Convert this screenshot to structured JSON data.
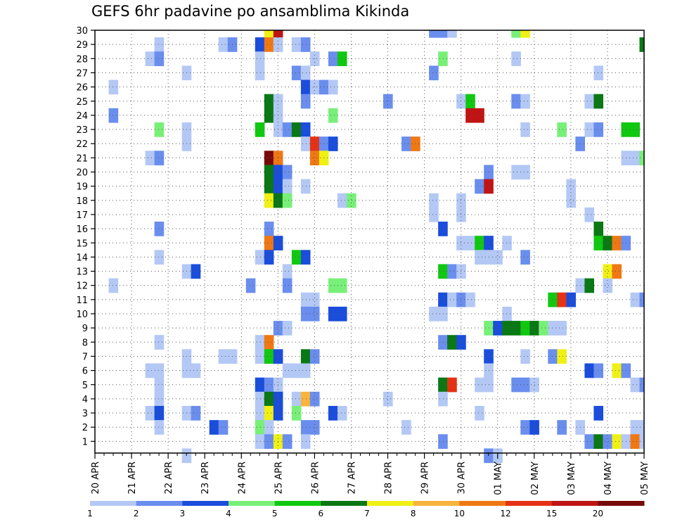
{
  "chart_data": {
    "type": "heatmap",
    "title": "GEFS 6hr padavine po ansamblima Kikinda",
    "xlabel": "",
    "ylabel": "",
    "grid": true,
    "x_range": [
      0,
      60
    ],
    "y_range": [
      0,
      30
    ],
    "x_ticks": [
      {
        "x": 0,
        "label": "20 APR"
      },
      {
        "x": 4,
        "label": "21 APR"
      },
      {
        "x": 8,
        "label": "22 APR"
      },
      {
        "x": 12,
        "label": "23 APR"
      },
      {
        "x": 16,
        "label": "24 APR"
      },
      {
        "x": 20,
        "label": "25 APR"
      },
      {
        "x": 24,
        "label": "26 APR"
      },
      {
        "x": 28,
        "label": "27 APR"
      },
      {
        "x": 32,
        "label": "28 APR"
      },
      {
        "x": 36,
        "label": "29 APR"
      },
      {
        "x": 40,
        "label": "30 APR"
      },
      {
        "x": 44,
        "label": "01 MAY"
      },
      {
        "x": 48,
        "label": "02 MAY"
      },
      {
        "x": 52,
        "label": "03 MAY"
      },
      {
        "x": 56,
        "label": "04 MAY"
      },
      {
        "x": 60,
        "label": "05 MAY"
      }
    ],
    "y_ticks": [
      1,
      2,
      3,
      4,
      5,
      6,
      7,
      8,
      9,
      10,
      11,
      12,
      13,
      14,
      15,
      16,
      17,
      18,
      19,
      20,
      21,
      22,
      23,
      24,
      25,
      26,
      27,
      28,
      29,
      30
    ],
    "legend": {
      "placement": "bottom",
      "labels": [
        "1",
        "2",
        "3",
        "4",
        "5",
        "6",
        "7",
        "8",
        "10",
        "12",
        "15",
        "20"
      ],
      "colors": [
        "#b4c8f5",
        "#6a8eee",
        "#1a4ddb",
        "#78f078",
        "#10c810",
        "#0a7814",
        "#f0f014",
        "#f8b43c",
        "#f07814",
        "#e63214",
        "#c01414",
        "#780a0a"
      ]
    },
    "cells_note": "each cell: [t (6-hr step from 20 APR 00z), member, color index into legend.colors]",
    "cells": [
      [
        19,
        30,
        6
      ],
      [
        20,
        30,
        10
      ],
      [
        37,
        30,
        1
      ],
      [
        38,
        30,
        1
      ],
      [
        39,
        30,
        0
      ],
      [
        46,
        30,
        3
      ],
      [
        47,
        30,
        6
      ],
      [
        7,
        29,
        0
      ],
      [
        14,
        29,
        0
      ],
      [
        15,
        29,
        1
      ],
      [
        18,
        29,
        2
      ],
      [
        19,
        29,
        8
      ],
      [
        20,
        29,
        0
      ],
      [
        22,
        29,
        0
      ],
      [
        23,
        29,
        1
      ],
      [
        60,
        29,
        5
      ],
      [
        6,
        28,
        0
      ],
      [
        7,
        28,
        1
      ],
      [
        18,
        28,
        0
      ],
      [
        24,
        28,
        0
      ],
      [
        26,
        28,
        1
      ],
      [
        27,
        28,
        4
      ],
      [
        38,
        28,
        3
      ],
      [
        46,
        28,
        0
      ],
      [
        10,
        27,
        0
      ],
      [
        18,
        27,
        0
      ],
      [
        22,
        27,
        1
      ],
      [
        23,
        27,
        0
      ],
      [
        37,
        27,
        1
      ],
      [
        55,
        27,
        0
      ],
      [
        2,
        26,
        0
      ],
      [
        23,
        26,
        2
      ],
      [
        24,
        26,
        0
      ],
      [
        25,
        26,
        1
      ],
      [
        26,
        26,
        0
      ],
      [
        19,
        25,
        5
      ],
      [
        20,
        25,
        0
      ],
      [
        23,
        25,
        1
      ],
      [
        32,
        25,
        1
      ],
      [
        40,
        25,
        0
      ],
      [
        41,
        25,
        4
      ],
      [
        46,
        25,
        1
      ],
      [
        47,
        25,
        0
      ],
      [
        54,
        25,
        0
      ],
      [
        55,
        25,
        5
      ],
      [
        2,
        24,
        1
      ],
      [
        19,
        24,
        5
      ],
      [
        20,
        24,
        0
      ],
      [
        26,
        24,
        3
      ],
      [
        41,
        24,
        10
      ],
      [
        42,
        24,
        10
      ],
      [
        7,
        23,
        3
      ],
      [
        10,
        23,
        0
      ],
      [
        18,
        23,
        4
      ],
      [
        20,
        23,
        0
      ],
      [
        21,
        23,
        1
      ],
      [
        22,
        23,
        5
      ],
      [
        23,
        23,
        2
      ],
      [
        47,
        23,
        0
      ],
      [
        51,
        23,
        3
      ],
      [
        54,
        23,
        0
      ],
      [
        55,
        23,
        1
      ],
      [
        58,
        23,
        4
      ],
      [
        59,
        23,
        4
      ],
      [
        10,
        22,
        0
      ],
      [
        23,
        22,
        0
      ],
      [
        24,
        22,
        9
      ],
      [
        25,
        22,
        1
      ],
      [
        26,
        22,
        2
      ],
      [
        34,
        22,
        1
      ],
      [
        35,
        22,
        8
      ],
      [
        53,
        22,
        1
      ],
      [
        6,
        21,
        0
      ],
      [
        7,
        21,
        1
      ],
      [
        19,
        21,
        11
      ],
      [
        20,
        21,
        8
      ],
      [
        24,
        21,
        8
      ],
      [
        25,
        21,
        6
      ],
      [
        58,
        21,
        0
      ],
      [
        59,
        21,
        0
      ],
      [
        60,
        21,
        3
      ],
      [
        19,
        20,
        5
      ],
      [
        20,
        20,
        2
      ],
      [
        21,
        20,
        1
      ],
      [
        43,
        20,
        1
      ],
      [
        46,
        20,
        0
      ],
      [
        47,
        20,
        0
      ],
      [
        19,
        19,
        5
      ],
      [
        20,
        19,
        2
      ],
      [
        21,
        19,
        0
      ],
      [
        23,
        19,
        0
      ],
      [
        42,
        19,
        1
      ],
      [
        43,
        19,
        10
      ],
      [
        52,
        19,
        0
      ],
      [
        19,
        18,
        6
      ],
      [
        20,
        18,
        5
      ],
      [
        21,
        18,
        3
      ],
      [
        27,
        18,
        0
      ],
      [
        28,
        18,
        3
      ],
      [
        37,
        18,
        0
      ],
      [
        40,
        18,
        0
      ],
      [
        52,
        18,
        0
      ],
      [
        37,
        17,
        0
      ],
      [
        40,
        17,
        0
      ],
      [
        54,
        17,
        0
      ],
      [
        7,
        16,
        1
      ],
      [
        19,
        16,
        1
      ],
      [
        38,
        16,
        2
      ],
      [
        55,
        16,
        5
      ],
      [
        19,
        15,
        8
      ],
      [
        20,
        15,
        2
      ],
      [
        40,
        15,
        0
      ],
      [
        41,
        15,
        0
      ],
      [
        42,
        15,
        4
      ],
      [
        43,
        15,
        2
      ],
      [
        45,
        15,
        0
      ],
      [
        55,
        15,
        4
      ],
      [
        56,
        15,
        5
      ],
      [
        57,
        15,
        8
      ],
      [
        58,
        15,
        1
      ],
      [
        7,
        14,
        0
      ],
      [
        18,
        14,
        0
      ],
      [
        19,
        14,
        2
      ],
      [
        22,
        14,
        4
      ],
      [
        23,
        14,
        2
      ],
      [
        42,
        14,
        0
      ],
      [
        43,
        14,
        0
      ],
      [
        44,
        14,
        0
      ],
      [
        47,
        14,
        1
      ],
      [
        10,
        13,
        0
      ],
      [
        11,
        13,
        2
      ],
      [
        21,
        13,
        0
      ],
      [
        38,
        13,
        4
      ],
      [
        39,
        13,
        1
      ],
      [
        40,
        13,
        0
      ],
      [
        56,
        13,
        6
      ],
      [
        57,
        13,
        8
      ],
      [
        2,
        12,
        0
      ],
      [
        17,
        12,
        1
      ],
      [
        21,
        12,
        1
      ],
      [
        26,
        12,
        3
      ],
      [
        27,
        12,
        3
      ],
      [
        53,
        12,
        0
      ],
      [
        54,
        12,
        5
      ],
      [
        56,
        12,
        0
      ],
      [
        23,
        11,
        0
      ],
      [
        24,
        11,
        0
      ],
      [
        38,
        11,
        2
      ],
      [
        39,
        11,
        0
      ],
      [
        40,
        11,
        1
      ],
      [
        41,
        11,
        0
      ],
      [
        50,
        11,
        4
      ],
      [
        51,
        11,
        9
      ],
      [
        52,
        11,
        2
      ],
      [
        59,
        11,
        0
      ],
      [
        60,
        11,
        1
      ],
      [
        23,
        10,
        1
      ],
      [
        24,
        10,
        1
      ],
      [
        26,
        10,
        2
      ],
      [
        27,
        10,
        2
      ],
      [
        37,
        10,
        0
      ],
      [
        38,
        10,
        0
      ],
      [
        45,
        10,
        0
      ],
      [
        20,
        9,
        1
      ],
      [
        21,
        9,
        0
      ],
      [
        43,
        9,
        3
      ],
      [
        44,
        9,
        2
      ],
      [
        45,
        9,
        5
      ],
      [
        46,
        9,
        5
      ],
      [
        47,
        9,
        4
      ],
      [
        48,
        9,
        5
      ],
      [
        49,
        9,
        3
      ],
      [
        50,
        9,
        0
      ],
      [
        51,
        9,
        0
      ],
      [
        7,
        8,
        0
      ],
      [
        18,
        8,
        0
      ],
      [
        19,
        8,
        8
      ],
      [
        38,
        8,
        1
      ],
      [
        39,
        8,
        5
      ],
      [
        40,
        8,
        2
      ],
      [
        10,
        7,
        0
      ],
      [
        14,
        7,
        0
      ],
      [
        15,
        7,
        0
      ],
      [
        18,
        7,
        0
      ],
      [
        19,
        7,
        4
      ],
      [
        20,
        7,
        2
      ],
      [
        23,
        7,
        5
      ],
      [
        24,
        7,
        1
      ],
      [
        43,
        7,
        2
      ],
      [
        47,
        7,
        0
      ],
      [
        50,
        7,
        1
      ],
      [
        51,
        7,
        6
      ],
      [
        6,
        6,
        0
      ],
      [
        7,
        6,
        0
      ],
      [
        10,
        6,
        0
      ],
      [
        11,
        6,
        0
      ],
      [
        21,
        6,
        0
      ],
      [
        22,
        6,
        0
      ],
      [
        23,
        6,
        0
      ],
      [
        43,
        6,
        0
      ],
      [
        54,
        6,
        2
      ],
      [
        55,
        6,
        1
      ],
      [
        57,
        6,
        6
      ],
      [
        58,
        6,
        1
      ],
      [
        7,
        5,
        0
      ],
      [
        18,
        5,
        2
      ],
      [
        19,
        5,
        1
      ],
      [
        20,
        5,
        0
      ],
      [
        38,
        5,
        5
      ],
      [
        39,
        5,
        9
      ],
      [
        42,
        5,
        0
      ],
      [
        43,
        5,
        0
      ],
      [
        46,
        5,
        1
      ],
      [
        47,
        5,
        1
      ],
      [
        48,
        5,
        0
      ],
      [
        59,
        5,
        0
      ],
      [
        60,
        5,
        1
      ],
      [
        7,
        4,
        0
      ],
      [
        18,
        4,
        0
      ],
      [
        19,
        4,
        5
      ],
      [
        20,
        4,
        2
      ],
      [
        22,
        4,
        0
      ],
      [
        23,
        4,
        7
      ],
      [
        24,
        4,
        1
      ],
      [
        32,
        4,
        0
      ],
      [
        38,
        4,
        0
      ],
      [
        6,
        3,
        0
      ],
      [
        7,
        3,
        2
      ],
      [
        10,
        3,
        0
      ],
      [
        11,
        3,
        1
      ],
      [
        18,
        3,
        0
      ],
      [
        19,
        3,
        6
      ],
      [
        20,
        3,
        2
      ],
      [
        22,
        3,
        3
      ],
      [
        26,
        3,
        2
      ],
      [
        27,
        3,
        0
      ],
      [
        42,
        3,
        0
      ],
      [
        55,
        3,
        2
      ],
      [
        7,
        2,
        0
      ],
      [
        13,
        2,
        2
      ],
      [
        14,
        2,
        1
      ],
      [
        18,
        2,
        3
      ],
      [
        19,
        2,
        0
      ],
      [
        23,
        2,
        1
      ],
      [
        24,
        2,
        1
      ],
      [
        34,
        2,
        0
      ],
      [
        47,
        2,
        1
      ],
      [
        48,
        2,
        2
      ],
      [
        51,
        2,
        1
      ],
      [
        53,
        2,
        0
      ],
      [
        59,
        2,
        0
      ],
      [
        60,
        2,
        0
      ],
      [
        18,
        1,
        0
      ],
      [
        19,
        1,
        1
      ],
      [
        20,
        1,
        6
      ],
      [
        21,
        1,
        1
      ],
      [
        23,
        1,
        0
      ],
      [
        38,
        1,
        1
      ],
      [
        54,
        1,
        1
      ],
      [
        55,
        1,
        5
      ],
      [
        56,
        1,
        1
      ],
      [
        57,
        1,
        6
      ],
      [
        58,
        1,
        0
      ],
      [
        59,
        1,
        8
      ],
      [
        60,
        1,
        0
      ],
      [
        10,
        0,
        0
      ],
      [
        43,
        0,
        1
      ],
      [
        44,
        0,
        0
      ]
    ]
  }
}
